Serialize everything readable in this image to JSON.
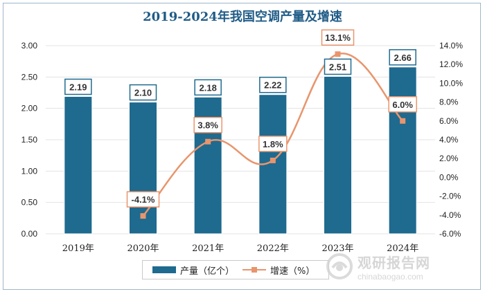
{
  "chart_data": {
    "type": "bar",
    "title": "2019-2024年我国空调产量及增速",
    "categories": [
      "2019年",
      "2020年",
      "2021年",
      "2022年",
      "2023年",
      "2024年"
    ],
    "series": [
      {
        "name": "产量（亿个）",
        "type": "bar",
        "axis": "left",
        "color": "#1f6a8f",
        "values": [
          2.19,
          2.1,
          2.18,
          2.22,
          2.51,
          2.66
        ],
        "labels": [
          "2.19",
          "2.10",
          "2.18",
          "2.22",
          "2.51",
          "2.66"
        ]
      },
      {
        "name": "增速（%）",
        "type": "line",
        "axis": "right",
        "color": "#e8956d",
        "values": [
          null,
          -4.1,
          3.8,
          1.8,
          13.1,
          6.0
        ],
        "labels": [
          "",
          "-4.1%",
          "3.8%",
          "1.8%",
          "13.1%",
          "6.0%"
        ]
      }
    ],
    "y_left": {
      "min": 0,
      "max": 3,
      "step": 0.5,
      "ticks": [
        "0.00",
        "0.50",
        "1.00",
        "1.50",
        "2.00",
        "2.50",
        "3.00"
      ]
    },
    "y_right": {
      "min": -6,
      "max": 14,
      "step": 2,
      "ticks": [
        "-6.0%",
        "-4.0%",
        "-2.0%",
        "0.0%",
        "2.0%",
        "4.0%",
        "6.0%",
        "8.0%",
        "10.0%",
        "12.0%",
        "14.0%"
      ]
    },
    "grid": true,
    "legend": "bottom-center"
  },
  "legend": {
    "bar_label": "产量（亿个）",
    "line_label": "增速（%）"
  },
  "watermark": {
    "name": "观研报告网",
    "url": "chinabaogao.com"
  }
}
